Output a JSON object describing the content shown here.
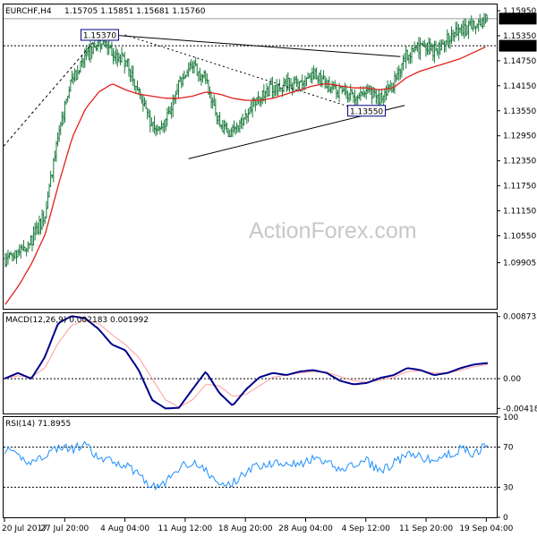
{
  "chart_data": [
    {
      "type": "candlestick",
      "title": "EURCHF,H4",
      "ohlc_readout": "1.15705 1.15851 1.15681 1.15760",
      "ohlc": {
        "open": 1.15705,
        "high": 1.15851,
        "low": 1.15681,
        "close": 1.1576
      },
      "ylim": [
        1.088,
        1.161
      ],
      "y_ticks": [
        "1.15950",
        "1.15350",
        "1.14750",
        "1.14150",
        "1.13550",
        "1.12950",
        "1.12350",
        "1.11750",
        "1.11150",
        "1.10550",
        "1.09905"
      ],
      "x_ticks": [
        "20 Jul 2017",
        "27 Jul 20:00",
        "4 Aug 04:00",
        "11 Aug 12:00",
        "18 Aug 20:00",
        "28 Aug 04:00",
        "4 Sep 12:00",
        "11 Sep 20:00",
        "19 Sep 04:00"
      ],
      "current_price_label": "1.15760",
      "horizontal_level": 1.1511,
      "horizontal_level_label": "1.15110",
      "annotations": [
        {
          "text": "1.15370",
          "value": 1.1537,
          "x": "27 Jul 20:00"
        },
        {
          "text": "1.13550",
          "value": 1.1355,
          "x": "4 Sep 12:00"
        }
      ],
      "trendlines": [
        "upper falling trendline from 1.15370",
        "lower rising trendline through 1.13550",
        "dashed line from 20 Jul low to 1.15370",
        "dotted line from 1.15370 toward 4 Sep"
      ],
      "moving_average_color": "#e0201c",
      "bar_color": "#1a7a3c",
      "close_path": [
        1.1,
        1.102,
        1.1045,
        1.111,
        1.13,
        1.143,
        1.148,
        1.152,
        1.149,
        1.1475,
        1.14,
        1.132,
        1.133,
        1.142,
        1.146,
        1.143,
        1.132,
        1.13,
        1.135,
        1.139,
        1.141,
        1.142,
        1.1415,
        1.145,
        1.142,
        1.14,
        1.139,
        1.141,
        1.138,
        1.142,
        1.149,
        1.151,
        1.15,
        1.153,
        1.1545,
        1.156,
        1.158
      ],
      "ma_path": [
        1.089,
        1.0935,
        1.099,
        1.106,
        1.118,
        1.129,
        1.136,
        1.14,
        1.142,
        1.1405,
        1.1395,
        1.139,
        1.1385,
        1.1385,
        1.139,
        1.14,
        1.1395,
        1.1385,
        1.138,
        1.138,
        1.1385,
        1.1395,
        1.1405,
        1.1415,
        1.142,
        1.1415,
        1.141,
        1.141,
        1.1405,
        1.141,
        1.1435,
        1.145,
        1.146,
        1.147,
        1.148,
        1.1495,
        1.151
      ]
    },
    {
      "type": "line",
      "title": "MACD(12,26,9) 0.002183 0.001992",
      "ylim": [
        -0.0049,
        0.0092
      ],
      "y_ticks": [
        "0.008732",
        "0.00",
        "-0.004184"
      ],
      "series": [
        {
          "name": "MACD",
          "color": "#00008b",
          "values": [
            0.0,
            0.0008,
            0.0,
            0.003,
            0.0078,
            0.0088,
            0.0085,
            0.007,
            0.0048,
            0.004,
            0.0012,
            -0.003,
            -0.0042,
            -0.0041,
            -0.0015,
            0.001,
            -0.002,
            -0.0038,
            -0.0015,
            0.0002,
            0.0008,
            0.0005,
            0.001,
            0.0012,
            0.0008,
            -0.0003,
            -0.0008,
            -0.0006,
            0.0001,
            0.0005,
            0.0015,
            0.0012,
            0.0005,
            0.0008,
            0.0015,
            0.002,
            0.0022
          ]
        },
        {
          "name": "Signal",
          "color": "#ff9da0",
          "values": [
            0.0,
            0.0004,
            0.0002,
            0.0015,
            0.005,
            0.0075,
            0.0082,
            0.0078,
            0.0062,
            0.0048,
            0.003,
            0.0,
            -0.003,
            -0.004,
            -0.003,
            -0.0008,
            -0.001,
            -0.0025,
            -0.0022,
            -0.001,
            0.0002,
            0.0005,
            0.0008,
            0.001,
            0.0009,
            0.0003,
            -0.0003,
            -0.0005,
            -0.0002,
            0.0002,
            0.001,
            0.0011,
            0.0008,
            0.0008,
            0.0012,
            0.0017,
            0.002
          ]
        }
      ]
    },
    {
      "type": "line",
      "title": "RSI(14) 71.8955",
      "ylim": [
        0,
        100
      ],
      "y_ticks": [
        "100",
        "70",
        "30",
        "0"
      ],
      "levels": [
        70,
        30
      ],
      "series": [
        {
          "name": "RSI",
          "color": "#1e90ff",
          "values": [
            68,
            60,
            55,
            62,
            70,
            68,
            72,
            58,
            56,
            52,
            44,
            30,
            34,
            50,
            56,
            46,
            32,
            34,
            46,
            52,
            54,
            56,
            52,
            58,
            54,
            48,
            52,
            56,
            46,
            54,
            62,
            60,
            56,
            62,
            68,
            64,
            72
          ]
        }
      ]
    }
  ],
  "watermark": "ActionForex.com"
}
